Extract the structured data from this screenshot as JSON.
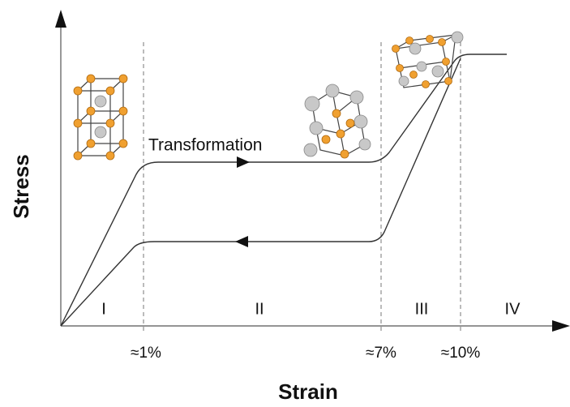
{
  "axes": {
    "y_label": "Stress",
    "x_label": "Strain"
  },
  "annotation": "Transformation",
  "regions": [
    "I",
    "II",
    "III",
    "IV"
  ],
  "strain_markers": [
    "≈1%",
    "≈7%",
    "≈10%"
  ]
}
